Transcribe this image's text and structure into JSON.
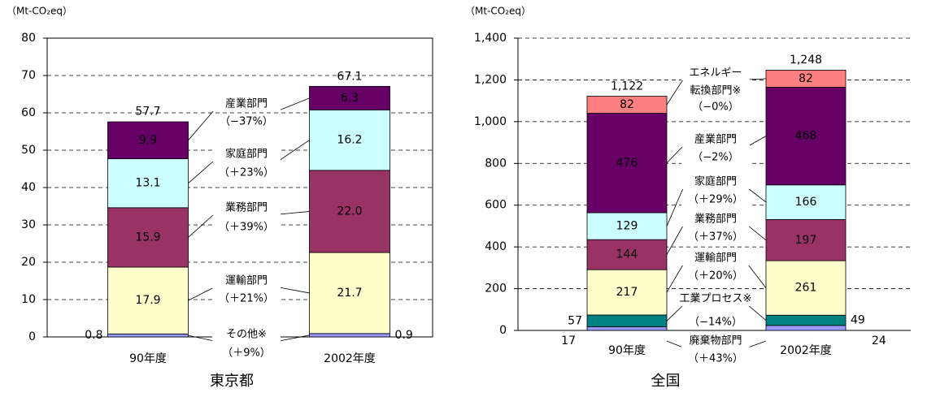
{
  "chart_data": [
    {
      "type": "bar",
      "stacked": true,
      "title": "東京都",
      "y_label": "（Mt-CO₂eq）",
      "categories": [
        "90年度",
        "2002年度"
      ],
      "ylim": [
        0,
        80
      ],
      "yticks": [
        0,
        10,
        20,
        30,
        40,
        50,
        60,
        70,
        80
      ],
      "grid": true,
      "series": [
        {
          "label": [
            "その他※",
            "（＋9%）"
          ],
          "color": "#9999ff",
          "values": [
            0.8,
            0.9
          ]
        },
        {
          "label": [
            "運輸部門",
            "（＋21%）"
          ],
          "color": "#ffffcc",
          "values": [
            17.9,
            21.7
          ]
        },
        {
          "label": [
            "業務部門",
            "（＋39%）"
          ],
          "color": "#993366",
          "values": [
            15.9,
            22.0
          ],
          "value_labels": [
            "15.9",
            "22.0"
          ]
        },
        {
          "label": [
            "家庭部門",
            "（＋23%）"
          ],
          "color": "#ccffff",
          "values": [
            13.1,
            16.2
          ]
        },
        {
          "label": [
            "産業部門",
            "（−37%）"
          ],
          "color": "#660066",
          "values": [
            9.9,
            6.3
          ]
        }
      ],
      "totals": [
        57.7,
        67.1
      ]
    },
    {
      "type": "bar",
      "stacked": true,
      "title": "全国",
      "y_label": "（Mt-CO₂eq）",
      "categories": [
        "90年度",
        "2002年度"
      ],
      "ylim": [
        0,
        1400
      ],
      "yticks": [
        0,
        200,
        400,
        600,
        800,
        {
          "value": 1000,
          "label": "1,000"
        },
        {
          "value": 1200,
          "label": "1,200"
        },
        {
          "value": 1400,
          "label": "1,400"
        }
      ],
      "grid": true,
      "series": [
        {
          "label": [
            "廃棄物部門",
            "（＋43%）"
          ],
          "color": "#9999ff",
          "values": [
            17,
            24
          ]
        },
        {
          "label": [
            "工業プロセス※",
            "（−14%）"
          ],
          "color": "#008080",
          "values": [
            57,
            49
          ]
        },
        {
          "label": [
            "運輸部門",
            "（＋20%）"
          ],
          "color": "#ffffcc",
          "values": [
            217,
            261
          ]
        },
        {
          "label": [
            "業務部門",
            "（＋37%）"
          ],
          "color": "#993366",
          "values": [
            144,
            197
          ]
        },
        {
          "label": [
            "家庭部門",
            "（＋29%）"
          ],
          "color": "#ccffff",
          "values": [
            129,
            166
          ]
        },
        {
          "label": [
            "産業部門",
            "（−2%）"
          ],
          "color": "#660066",
          "values": [
            476,
            468
          ]
        },
        {
          "label": [
            "エネルギー",
            "転換部門※",
            "（−0%）"
          ],
          "color": "#ff8080",
          "values": [
            82,
            82
          ]
        }
      ],
      "totals": [
        1122,
        1248
      ],
      "total_labels": [
        "1,122",
        "1,248"
      ]
    }
  ]
}
